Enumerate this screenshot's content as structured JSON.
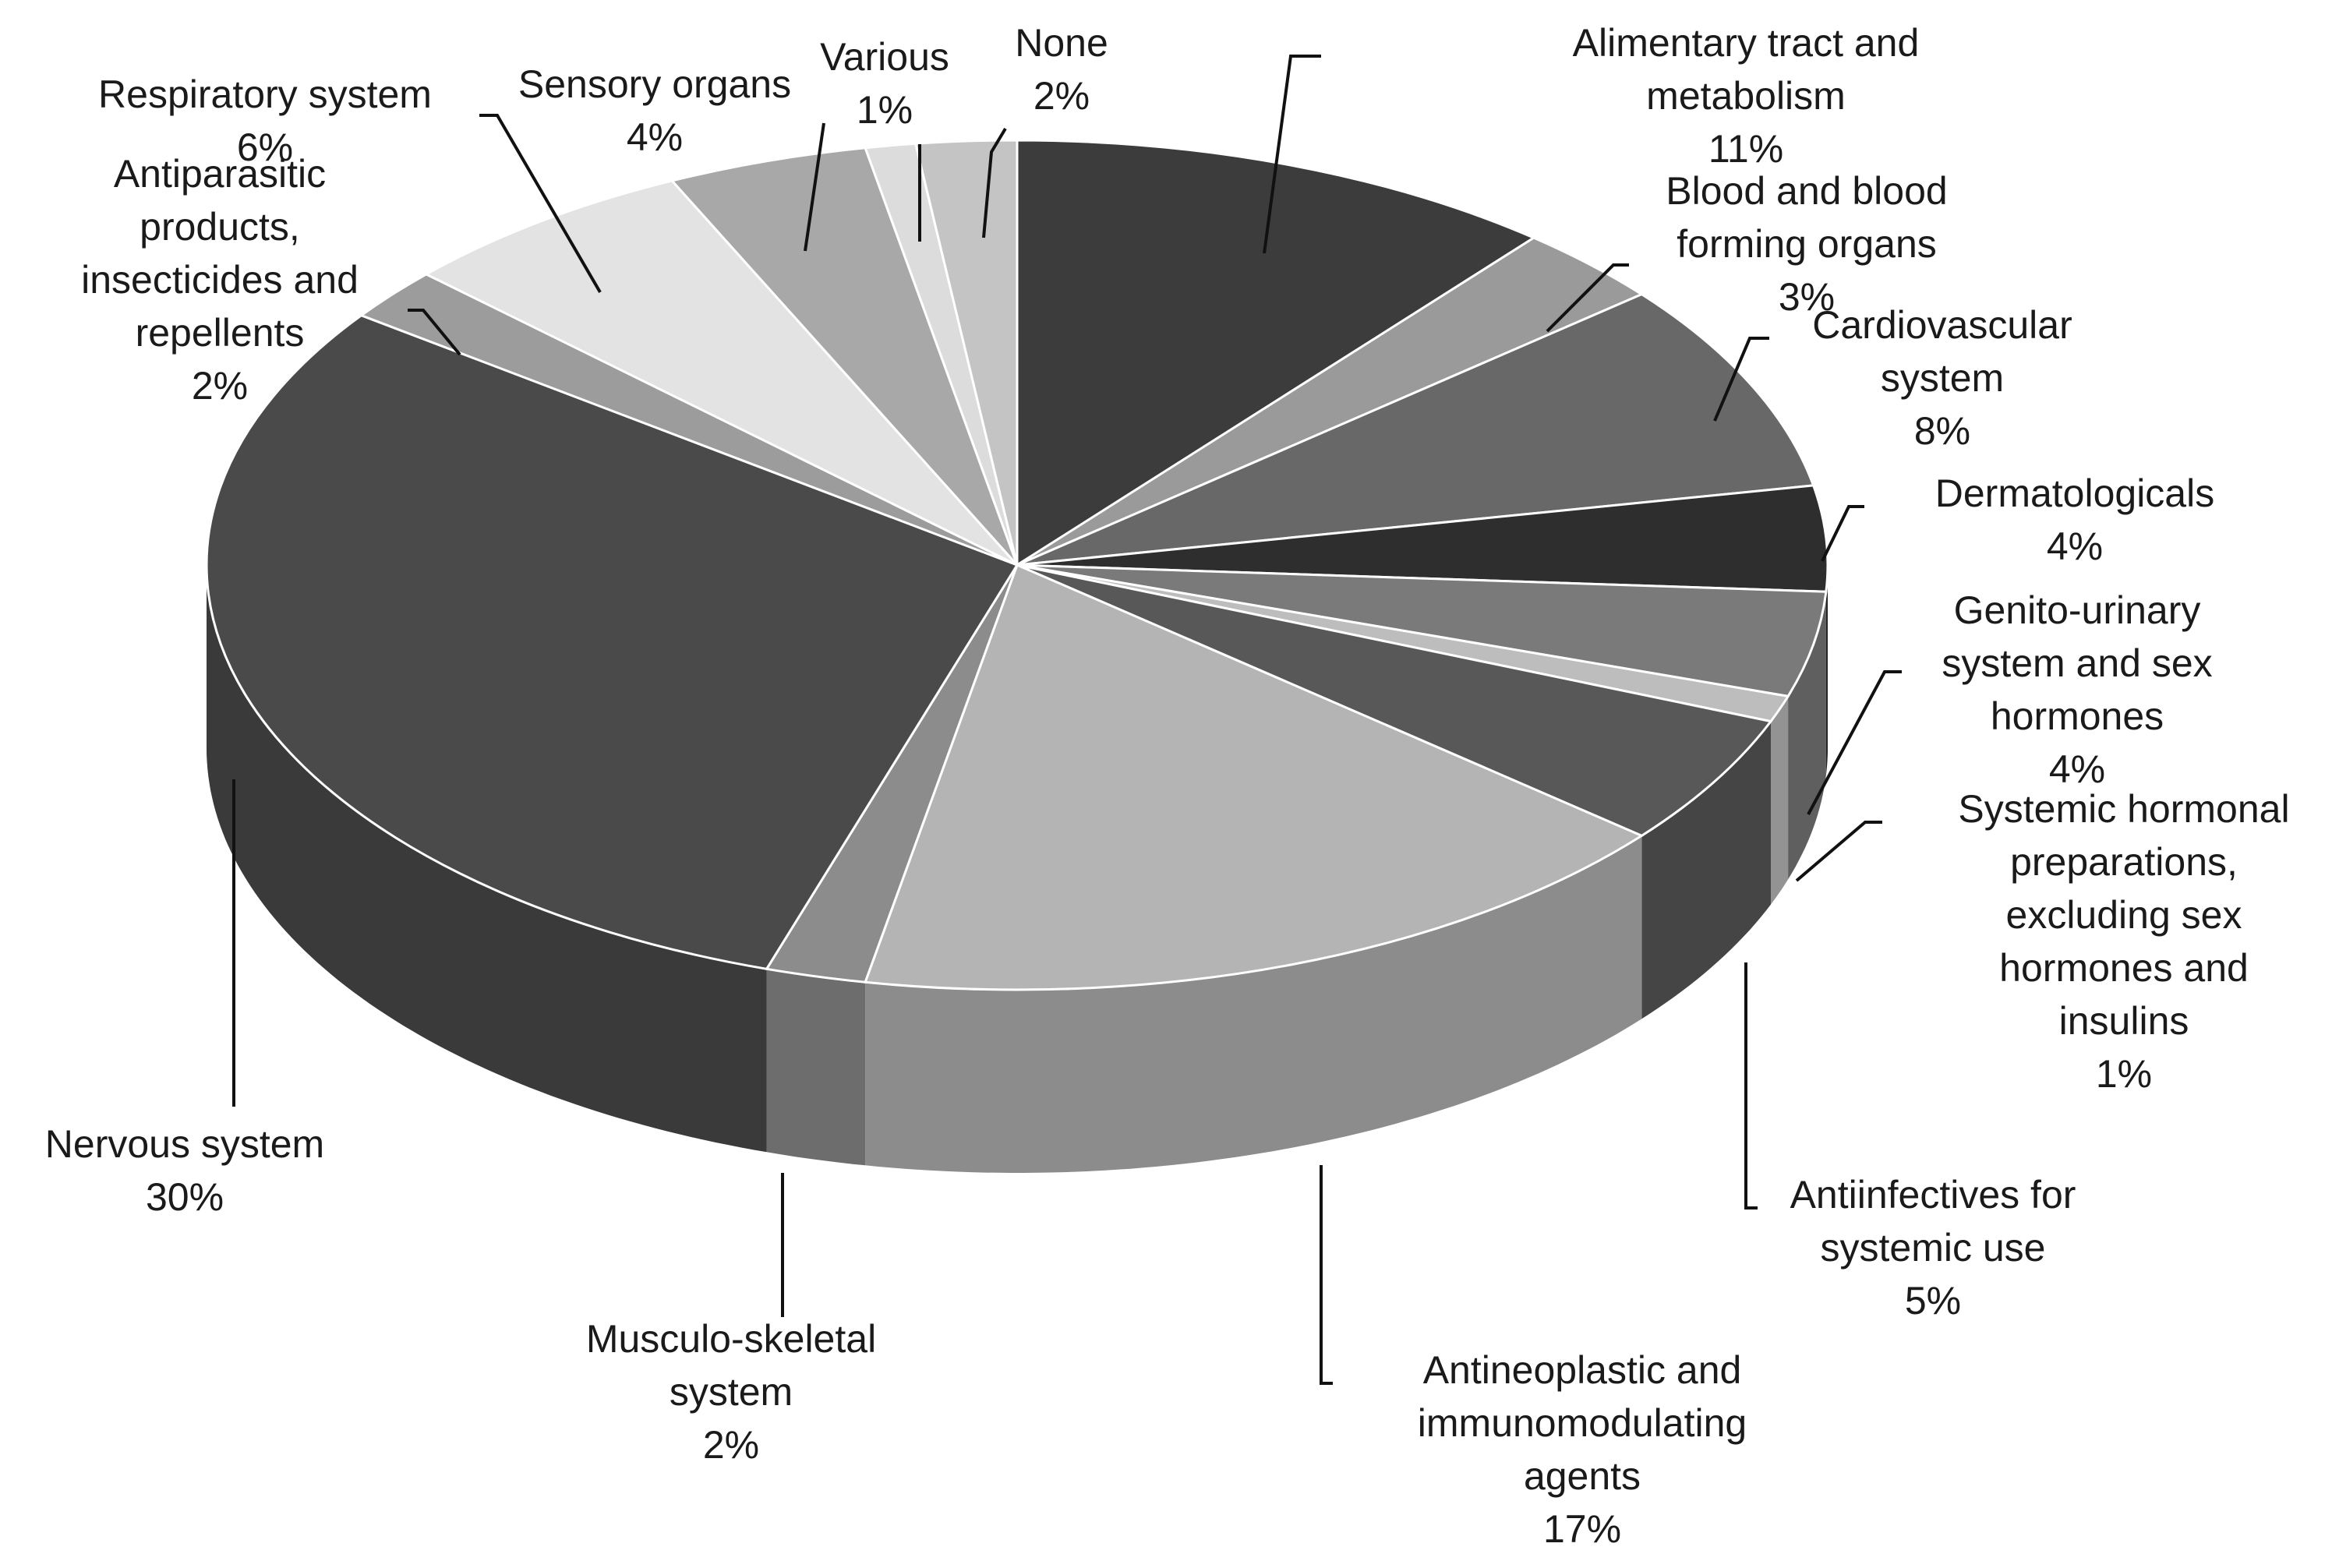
{
  "chart_data": {
    "type": "pie",
    "style": "3d-exploded-none",
    "start_angle_deg": 0,
    "direction": "clockwise",
    "slices": [
      {
        "label": "Alimentary tract and metabolism",
        "value": 11,
        "value_label": "11%",
        "color": "#3c3c3c"
      },
      {
        "label": "Blood and blood forming organs",
        "value": 3,
        "value_label": "3%",
        "color": "#9a9a9a"
      },
      {
        "label": "Cardiovascular system",
        "value": 8,
        "value_label": "8%",
        "color": "#686868"
      },
      {
        "label": "Dermatologicals",
        "value": 4,
        "value_label": "4%",
        "color": "#2e2e2e"
      },
      {
        "label": "Genito-urinary system and sex hormones",
        "value": 4,
        "value_label": "4%",
        "color": "#7a7a7a"
      },
      {
        "label": "Systemic hormonal preparations, excluding sex hormones and insulins",
        "value": 1,
        "value_label": "1%",
        "color": "#bdbdbd"
      },
      {
        "label": "Antiinfectives for systemic use",
        "value": 5,
        "value_label": "5%",
        "color": "#585858"
      },
      {
        "label": "Antineoplastic and immunomodulating agents",
        "value": 17,
        "value_label": "17%",
        "color": "#b4b4b4"
      },
      {
        "label": "Musculo-skeletal system",
        "value": 2,
        "value_label": "2%",
        "color": "#8c8c8c"
      },
      {
        "label": "Nervous system",
        "value": 30,
        "value_label": "30%",
        "color": "#4a4a4a"
      },
      {
        "label": "Antiparasitic products, insecticides and repellents",
        "value": 2,
        "value_label": "2%",
        "color": "#9c9c9c"
      },
      {
        "label": "Respiratory system",
        "value": 6,
        "value_label": "6%",
        "color": "#e3e3e3"
      },
      {
        "label": "Sensory organs",
        "value": 4,
        "value_label": "4%",
        "color": "#a8a8a8"
      },
      {
        "label": "Various",
        "value": 1,
        "value_label": "1%",
        "color": "#dcdcdc"
      },
      {
        "label": "None",
        "value": 2,
        "value_label": "2%",
        "color": "#c4c4c4"
      }
    ],
    "legend": "none",
    "title": ""
  }
}
